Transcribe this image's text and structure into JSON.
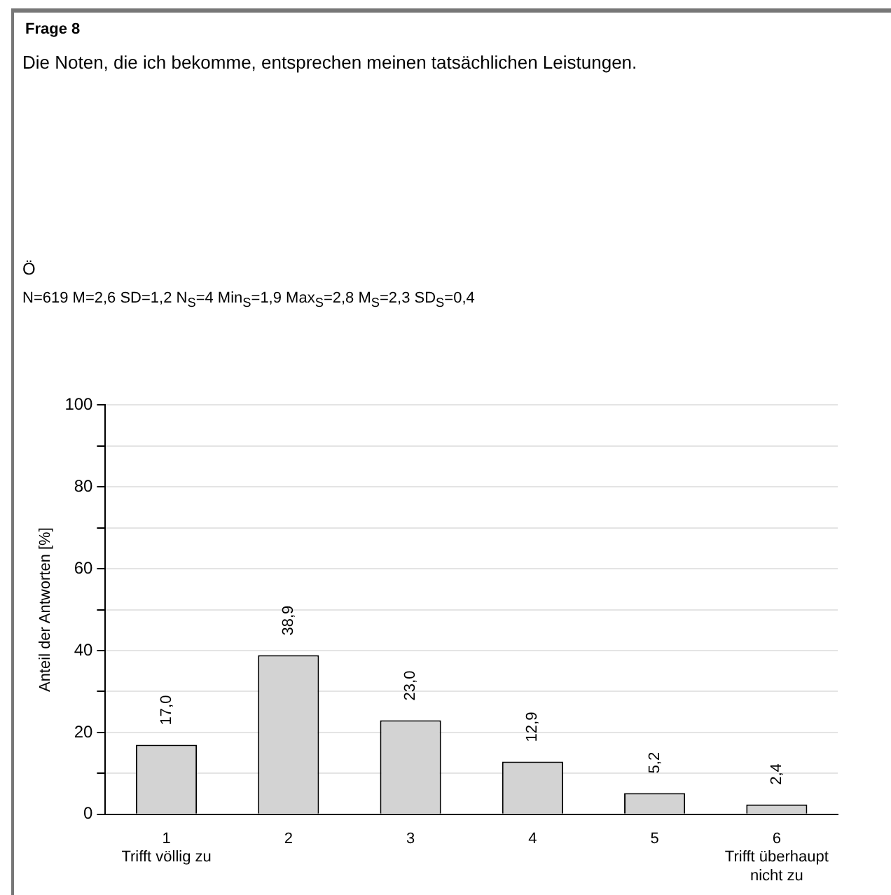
{
  "chart_data": {
    "type": "bar",
    "title": "Frage 8",
    "subtitle": "Die Noten, die ich bekomme, entsprechen meinen tatsächlichen Leistungen.",
    "annotations": [
      "Ö",
      "N=619 M=2,6 SD=1,2 N$_{S}$=4 Min$_{S}$=1,9 Max$_{S}$=2,8 M$_{S}$=2,3 SD$_{S}$=0,4"
    ],
    "ylabel": "Anteil der Antworten [%]",
    "categories": [
      "1\nTrifft völlig zu",
      "2",
      "3",
      "4",
      "5",
      "6\nTrifft überhaupt\nnicht zu"
    ],
    "values": [
      17.0,
      38.9,
      23.0,
      12.9,
      5.2,
      2.4
    ],
    "value_labels": [
      "17,0",
      "38,9",
      "23,0",
      "12,9",
      "5,2",
      "2,4"
    ],
    "color": "#d3d3d3",
    "ylim": [
      0,
      100
    ],
    "yticks": [
      0,
      {
        "value": 10,
        "label": null
      },
      20,
      {
        "value": 30,
        "label": null
      },
      40,
      {
        "value": 50,
        "label": null
      },
      60,
      {
        "value": 70,
        "label": null
      },
      80,
      {
        "value": 90,
        "label": null
      },
      100
    ],
    "grid": "y",
    "legend": false
  }
}
